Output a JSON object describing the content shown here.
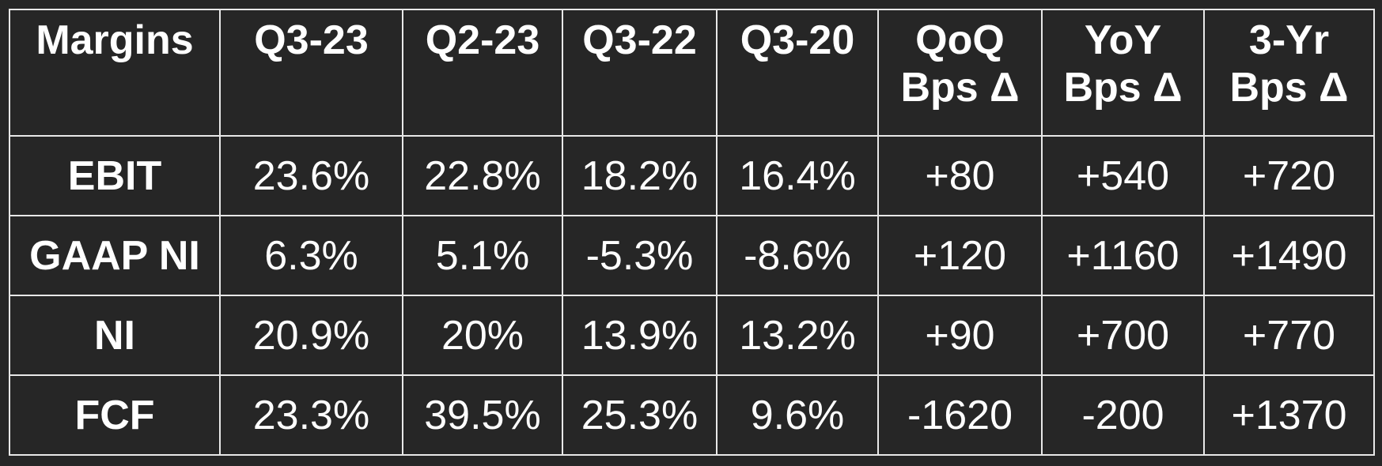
{
  "table": {
    "header": [
      "Margins",
      "Q3-23",
      "Q2-23",
      "Q3-22",
      "Q3-20",
      "QoQ Bps Δ",
      "YoY Bps Δ",
      "3-Yr Bps Δ"
    ],
    "rows": [
      [
        "EBIT",
        "23.6%",
        "22.8%",
        "18.2%",
        "16.4%",
        "+80",
        "+540",
        "+720"
      ],
      [
        "GAAP NI",
        "6.3%",
        "5.1%",
        "-5.3%",
        "-8.6%",
        "+120",
        "+1160",
        "+1490"
      ],
      [
        "NI",
        "20.9%",
        "20%",
        "13.9%",
        "13.2%",
        "+90",
        "+700",
        "+770"
      ],
      [
        "FCF",
        "23.3%",
        "39.5%",
        "25.3%",
        "9.6%",
        "-1620",
        "-200",
        "+1370"
      ]
    ]
  }
}
